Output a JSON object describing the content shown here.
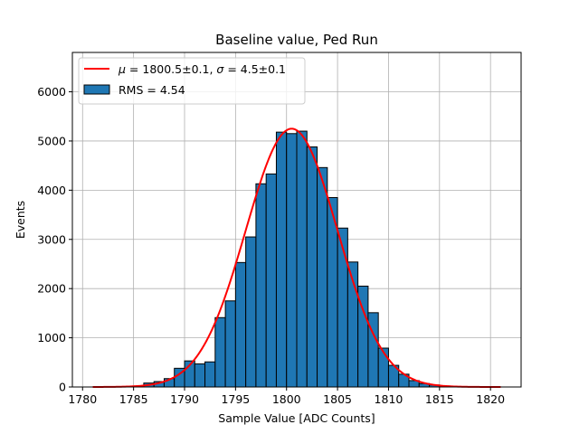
{
  "chart_data": {
    "type": "bar",
    "title": "Baseline value, Ped Run",
    "xlabel": "Sample Value [ADC Counts]",
    "ylabel": "Events",
    "xlim": [
      1779,
      1823
    ],
    "ylim": [
      0,
      6800
    ],
    "xticks": [
      1780,
      1785,
      1790,
      1795,
      1800,
      1805,
      1810,
      1815,
      1820
    ],
    "yticks": [
      0,
      1000,
      2000,
      3000,
      4000,
      5000,
      6000
    ],
    "grid": true,
    "legend_position": "top-left",
    "bin_width": 1,
    "series": [
      {
        "name": "RMS = 4.54",
        "kind": "histogram",
        "color": "#1f77b4",
        "edgecolor": "#000000",
        "bin_left_edges": [
          1786,
          1787,
          1788,
          1789,
          1790,
          1791,
          1792,
          1793,
          1794,
          1795,
          1796,
          1797,
          1798,
          1799,
          1800,
          1801,
          1802,
          1803,
          1804,
          1805,
          1806,
          1807,
          1808,
          1809,
          1810,
          1811,
          1812,
          1813,
          1814,
          1815
        ],
        "values": [
          80,
          110,
          170,
          380,
          530,
          470,
          510,
          1410,
          1750,
          2530,
          3050,
          4130,
          4330,
          5180,
          5150,
          5200,
          4880,
          4460,
          3850,
          3230,
          2540,
          2050,
          1510,
          790,
          440,
          260,
          130,
          70,
          40,
          20
        ]
      },
      {
        "name": "$\\mu=1800.5\\pm0.1$, $\\sigma=4.5\\pm0.1$",
        "legend_label": {
          "mu_symbol": "μ",
          "mu_text": " = 1800.5±0.1, ",
          "sigma_symbol": "σ",
          "sigma_text": " = 4.5±0.1"
        },
        "kind": "gaussian_fit",
        "color": "#ff0000",
        "mu": 1800.5,
        "sigma": 4.5,
        "amplitude": 5250,
        "x_range": [
          1781,
          1821
        ]
      }
    ]
  }
}
